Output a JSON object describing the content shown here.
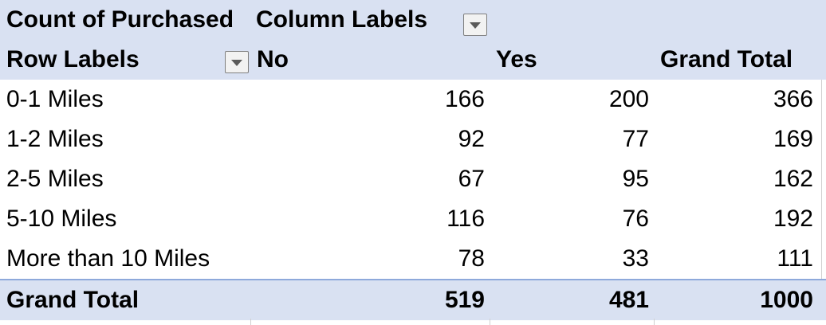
{
  "pivot": {
    "title": "Count of Purchased",
    "column_labels": "Column Labels",
    "row_labels": "Row Labels",
    "columns": [
      "No",
      "Yes",
      "Grand Total"
    ],
    "rows": [
      {
        "label": "0-1 Miles",
        "values": [
          "166",
          "200",
          "366"
        ]
      },
      {
        "label": "1-2 Miles",
        "values": [
          "92",
          "77",
          "169"
        ]
      },
      {
        "label": "2-5 Miles",
        "values": [
          "67",
          "95",
          "162"
        ]
      },
      {
        "label": "5-10 Miles",
        "values": [
          "116",
          "76",
          "192"
        ]
      },
      {
        "label": "More than 10 Miles",
        "values": [
          "78",
          "33",
          "111"
        ]
      }
    ],
    "grand_total": {
      "label": "Grand Total",
      "values": [
        "519",
        "481",
        "1000"
      ]
    }
  },
  "colors": {
    "header_fill": "#d9e1f2",
    "border_accent": "#8ea9db"
  }
}
